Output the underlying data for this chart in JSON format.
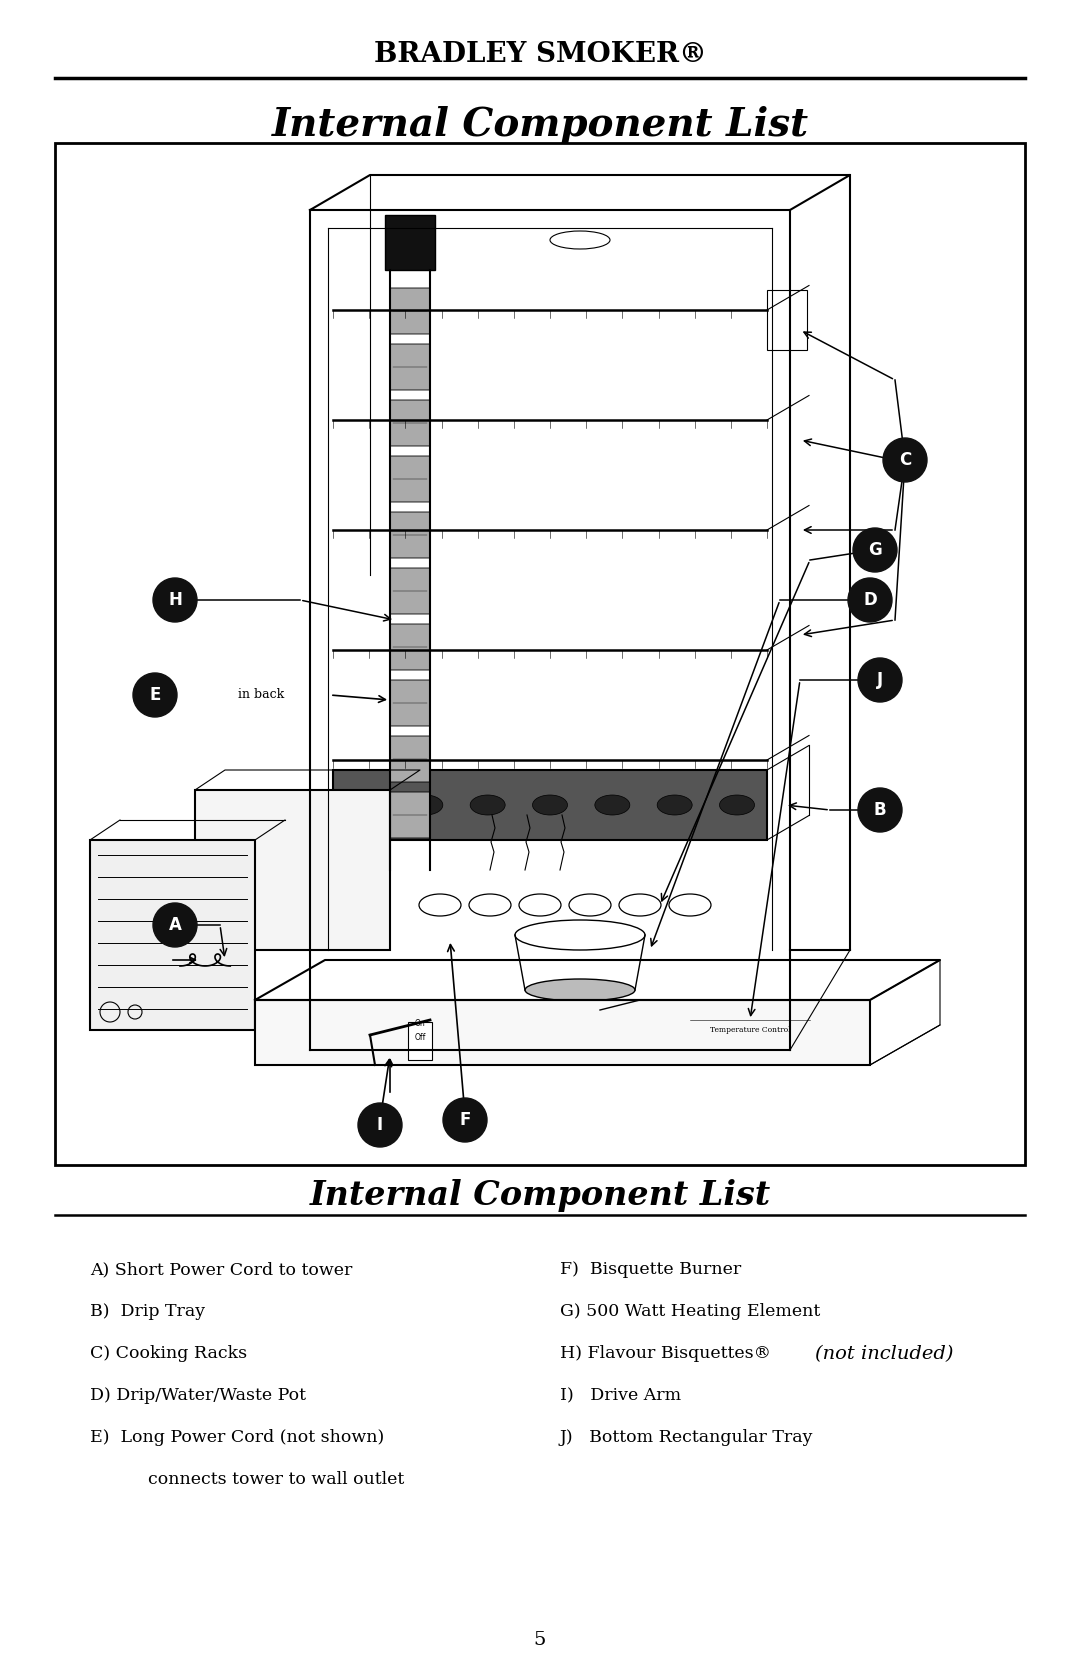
{
  "page_title": "BRADLEY SMOKER®",
  "page_subtitle": "Internal Component List",
  "section_title": "Internal Component List",
  "page_number": "5",
  "bg": "#ffffff",
  "fg": "#000000",
  "left_items": [
    "A) Short Power Cord to tower",
    "B)  Drip Tray",
    "C) Cooking Racks",
    "D) Drip/Water/Waste Pot",
    "E)  Long Power Cord (not shown)",
    "      connects tower to wall outlet"
  ],
  "right_items": [
    "F)  Bisquette Burner",
    "G) 500 Watt Heating Element",
    "I)   Drive Arm",
    "J)   Bottom Rectangular Tray"
  ],
  "h_item_base": "H) Flavour Bisquettes® ",
  "h_item_italic": "(not included)"
}
